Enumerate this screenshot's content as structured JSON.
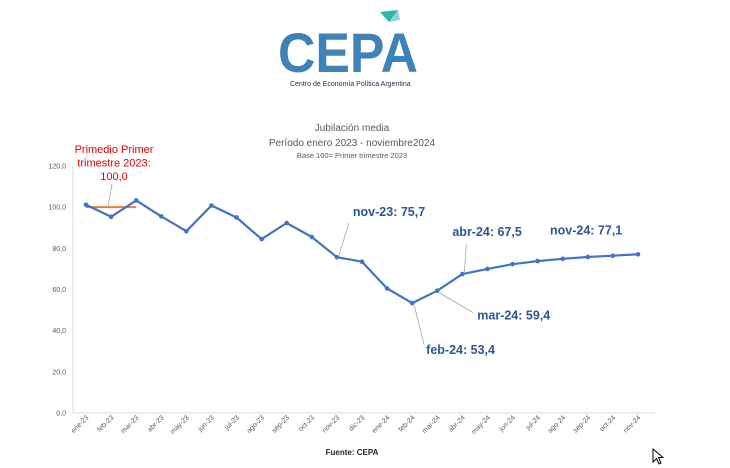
{
  "logo": {
    "wordmark": "CEPA",
    "subtitle": "Centro de Economía Política Argentina",
    "brand_color": "#3d82b8"
  },
  "chart_data": {
    "type": "line",
    "title": "Jubilación media",
    "subtitle": "Período enero 2023 - noviembre2024",
    "note": "Base 100=  Primer trimestre 2023",
    "source": "Fuente: CEPA",
    "categories": [
      "ene-23",
      "feb-23",
      "mar-23",
      "abr-23",
      "may-23",
      "jun-23",
      "jul-23",
      "ago-23",
      "sep-23",
      "oct-23",
      "nov-23",
      "dic-23",
      "ene-24",
      "feb-24",
      "mar-24",
      "abr-24",
      "may-24",
      "jun-24",
      "jul-24",
      "ago-24",
      "sep-24",
      "oct-24",
      "nov-24"
    ],
    "series": [
      {
        "values": [
          101.2,
          95.3,
          103.3,
          95.5,
          88.3,
          100.8,
          95.0,
          84.5,
          92.3,
          85.5,
          75.7,
          73.5,
          60.5,
          53.4,
          59.4,
          67.5,
          70.0,
          72.3,
          73.8,
          74.9,
          75.8,
          76.4,
          77.1
        ],
        "color": "#4472c4"
      }
    ],
    "reference": {
      "value": 100.0,
      "from": "ene-23",
      "to": "mar-23",
      "color": "#ed7d31",
      "label_lines": [
        "Primedio Primer",
        "trimestre 2023:",
        "100,0"
      ]
    },
    "annotations": [
      {
        "text": "nov-23: 75,7",
        "category": "nov-23"
      },
      {
        "text": "abr-24: 67,5",
        "category": "abr-24"
      },
      {
        "text": "nov-24: 77,1",
        "category": "nov-24"
      },
      {
        "text": "mar-24: 59,4",
        "category": "mar-24"
      },
      {
        "text": "feb-24: 53,4",
        "category": "feb-24"
      }
    ],
    "y_ticks": [
      "0,0",
      "20,0",
      "40,0",
      "60,0",
      "80,0",
      "100,0",
      "120,0"
    ],
    "ylim": [
      0,
      120
    ],
    "grid": false,
    "legend": "none",
    "annotation_color": "#2f5597"
  }
}
